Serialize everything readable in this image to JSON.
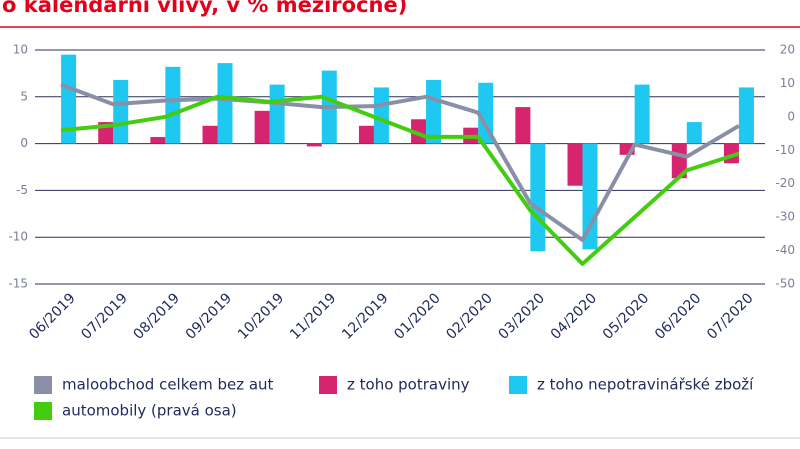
{
  "chart_data": {
    "type": "bar-line",
    "title": "o kalendářní vlivy, v % meziročně)",
    "categories": [
      "06/2019",
      "07/2019",
      "08/2019",
      "09/2019",
      "10/2019",
      "11/2019",
      "12/2019",
      "01/2020",
      "02/2020",
      "03/2020",
      "04/2020",
      "05/2020",
      "06/2020",
      "07/2020"
    ],
    "series": [
      {
        "name": "maloobchod celkem bez aut",
        "kind": "line",
        "color": "#8a8fa8",
        "axis": "y",
        "values": [
          6.3,
          4.2,
          4.6,
          4.8,
          4.4,
          3.9,
          4.0,
          5.0,
          3.3,
          -6.4,
          -10.3,
          -0.1,
          -1.4,
          1.9
        ]
      },
      {
        "name": "z toho potraviny",
        "kind": "bar",
        "color": "#d6246e",
        "axis": "y",
        "values": [
          null,
          2.3,
          0.7,
          1.9,
          3.5,
          -0.3,
          1.9,
          2.6,
          1.7,
          3.9,
          -4.5,
          -1.2,
          -3.7,
          -2.1
        ]
      },
      {
        "name": "z toho nepotravinářské zboží",
        "kind": "bar",
        "color": "#1ec8f0",
        "axis": "y",
        "values": [
          9.5,
          6.8,
          8.2,
          8.6,
          6.3,
          7.8,
          6.0,
          6.8,
          6.5,
          -11.5,
          -11.3,
          6.3,
          2.3,
          6.0
        ]
      },
      {
        "name": "automobily (pravá osa)",
        "kind": "line",
        "color": "#44cc11",
        "axis": "y2",
        "values": [
          -4,
          -2.5,
          0,
          6,
          4.5,
          6,
          0,
          -6,
          -6,
          -28,
          -44,
          -30,
          -16,
          -11
        ]
      }
    ],
    "ylim": [
      -15,
      10
    ],
    "yticks": [
      -15,
      -10,
      -5,
      0,
      5,
      10
    ],
    "y2lim": [
      -50,
      20
    ],
    "y2ticks": [
      -50,
      -40,
      -30,
      -20,
      -10,
      0,
      10,
      20
    ],
    "grid": true
  }
}
